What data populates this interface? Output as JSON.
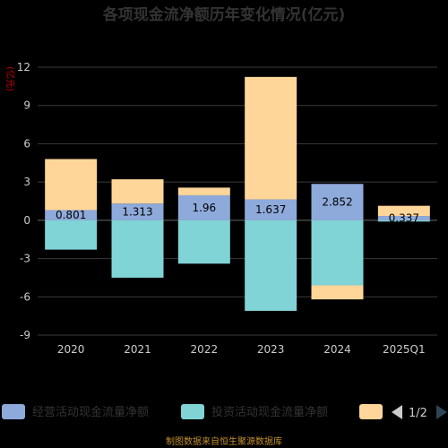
{
  "chart_data": {
    "type": "bar",
    "title": "各项现金流净额历年变化情况(亿元)",
    "unit_label": "(亿元)",
    "categories": [
      "2020",
      "2021",
      "2022",
      "2023",
      "2024",
      "2025Q1"
    ],
    "ylim": [
      -9,
      12
    ],
    "yticks": [
      -9,
      -6,
      -3,
      0,
      3,
      6,
      9,
      12
    ],
    "grid": true,
    "stacked": true,
    "series": [
      {
        "name": "经营活动现金流量净额",
        "color": "#8eaadb",
        "values": [
          0.801,
          1.313,
          1.96,
          1.637,
          2.852,
          0.337
        ],
        "labels": [
          "0.801",
          "1.313",
          "1.96",
          "1.637",
          "2.852",
          "0.337"
        ]
      },
      {
        "name": "投资活动现金流量净额",
        "color": "#80d4d6",
        "values": [
          -2.3,
          -4.5,
          -3.4,
          -7.1,
          -5.1,
          -0.1
        ]
      },
      {
        "name": "",
        "color": "#ffd699",
        "values": [
          4.0,
          1.9,
          0.6,
          9.6,
          -1.1,
          0.8
        ]
      }
    ],
    "legend_position": "bottom",
    "legend_page": "1/2"
  },
  "footer": "制图数据来自恒生聚源数据库"
}
